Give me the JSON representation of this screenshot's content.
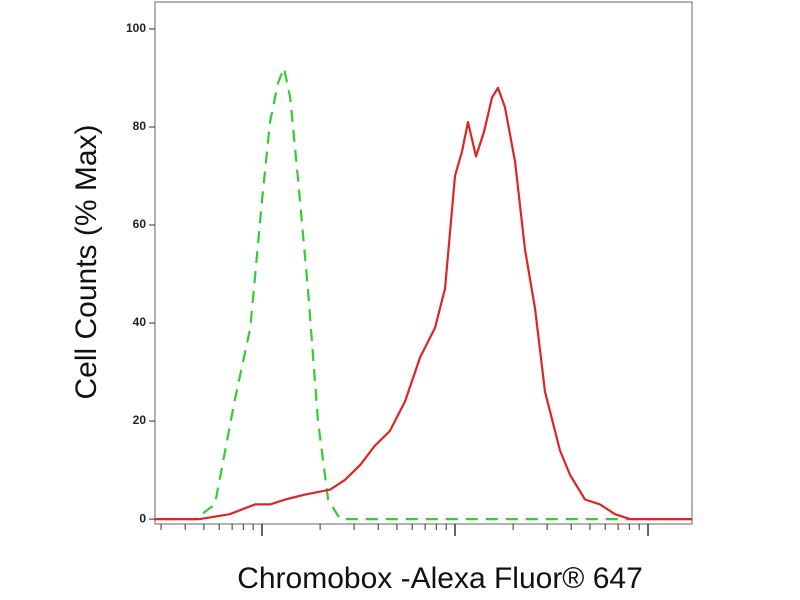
{
  "chart_data": {
    "type": "line",
    "xscale": "log",
    "xlabel": "Chromobox -Alexa Fluor® 647",
    "ylabel": "Cell Counts (% Max)",
    "xlim": [
      27.9,
      16900
    ],
    "xticks": [
      100,
      1000,
      10000
    ],
    "ylim": [
      -1,
      105.5
    ],
    "yticks": [
      0,
      20,
      40,
      60,
      80,
      100
    ],
    "series": [
      {
        "color": "#33cc33",
        "dashed": true,
        "x": [
          31.4,
          45,
          57,
          72,
          87,
          100,
          110,
          121,
          130,
          140,
          154,
          173,
          195,
          220,
          254,
          519,
          942,
          3500,
          16900
        ],
        "values": [
          0,
          0,
          3,
          24,
          39,
          65,
          81,
          89,
          92,
          86,
          69,
          47,
          20,
          4,
          0,
          0,
          0,
          0,
          0
        ]
      },
      {
        "color": "#e02424",
        "dashed": false,
        "x": [
          27.9,
          47.7,
          68,
          92,
          110,
          132,
          167,
          225,
          269,
          322,
          385,
          460,
          551,
          659,
          788,
          887,
          1000,
          1087,
          1167,
          1285,
          1414,
          1555,
          1671,
          1816,
          2046,
          2305,
          2598,
          2926,
          3499,
          3945,
          4717,
          5641,
          6745,
          8066,
          16900
        ],
        "values": [
          0,
          0,
          1,
          3,
          3,
          4,
          5,
          6,
          8,
          11,
          15,
          18,
          24,
          33,
          39,
          47,
          70,
          75,
          81,
          74,
          79,
          86,
          88,
          84,
          73,
          55,
          43,
          26,
          14,
          9,
          4,
          3,
          1,
          0,
          0
        ]
      }
    ]
  }
}
